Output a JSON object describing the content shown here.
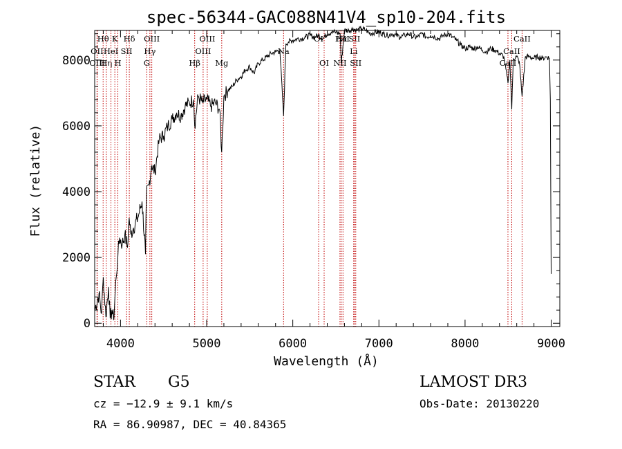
{
  "chart_data": {
    "type": "line",
    "title": "spec-56344-GAC088N41V4_sp10-204.fits",
    "xlabel": "Wavelength (Å)",
    "ylabel": "Flux (relative)",
    "xlim": [
      3700,
      9100
    ],
    "ylim": [
      -100,
      8900
    ],
    "xticks": [
      4000,
      5000,
      6000,
      7000,
      8000,
      9000
    ],
    "yticks": [
      0,
      2000,
      4000,
      6000,
      8000
    ],
    "grid": false,
    "series": [
      {
        "name": "spectrum",
        "x": [
          3700,
          3750,
          3780,
          3800,
          3830,
          3860,
          3880,
          3900,
          3920,
          3935,
          3950,
          3970,
          3990,
          4020,
          4050,
          4080,
          4100,
          4120,
          4150,
          4200,
          4250,
          4290,
          4300,
          4330,
          4360,
          4400,
          4450,
          4500,
          4550,
          4600,
          4650,
          4700,
          4750,
          4800,
          4850,
          4861,
          4900,
          4950,
          5000,
          5050,
          5100,
          5150,
          5175,
          5200,
          5250,
          5300,
          5350,
          5400,
          5450,
          5500,
          5550,
          5600,
          5650,
          5700,
          5750,
          5800,
          5850,
          5893,
          5920,
          5950,
          6000,
          6050,
          6100,
          6150,
          6200,
          6250,
          6300,
          6350,
          6400,
          6450,
          6500,
          6550,
          6563,
          6600,
          6650,
          6700,
          6750,
          6800,
          6850,
          6900,
          6950,
          7000,
          7050,
          7100,
          7150,
          7200,
          7250,
          7300,
          7350,
          7400,
          7450,
          7500,
          7550,
          7600,
          7650,
          7700,
          7750,
          7800,
          7850,
          7900,
          7950,
          8000,
          8050,
          8100,
          8150,
          8200,
          8250,
          8300,
          8350,
          8400,
          8450,
          8498,
          8520,
          8542,
          8560,
          8600,
          8630,
          8662,
          8700,
          8750,
          8800,
          8850,
          8900,
          8950,
          8980,
          8990,
          9000
        ],
        "y": [
          400,
          900,
          300,
          1400,
          200,
          1100,
          150,
          400,
          100,
          800,
          1400,
          2100,
          2600,
          2400,
          2700,
          2300,
          3200,
          2700,
          2900,
          3200,
          3700,
          2100,
          3900,
          4200,
          4800,
          4600,
          5600,
          5700,
          6000,
          6200,
          6400,
          6300,
          6600,
          6700,
          6800,
          6000,
          6900,
          6700,
          6800,
          6600,
          6700,
          6500,
          5200,
          6900,
          7100,
          7200,
          7400,
          7500,
          7700,
          7800,
          7600,
          7900,
          8000,
          8100,
          8200,
          8250,
          8300,
          6300,
          8500,
          8550,
          8600,
          8650,
          8650,
          8700,
          8750,
          8700,
          8750,
          8650,
          8800,
          8850,
          8850,
          8800,
          7900,
          8900,
          8900,
          8950,
          8900,
          8950,
          8900,
          8800,
          8850,
          8850,
          8800,
          8750,
          8800,
          8750,
          8700,
          8750,
          8800,
          8700,
          8700,
          8800,
          8700,
          8750,
          8700,
          8650,
          8750,
          8800,
          8700,
          8600,
          8450,
          8350,
          8400,
          8350,
          8400,
          8300,
          8250,
          8350,
          8300,
          8200,
          8100,
          7300,
          8000,
          6500,
          8050,
          8100,
          7950,
          6900,
          8100,
          8100,
          8050,
          8100,
          8050,
          8100,
          8050,
          6800,
          1500
        ]
      }
    ],
    "lines": [
      {
        "label": "Hθ",
        "x": 3798,
        "row": 1
      },
      {
        "label": "OII",
        "x": 3727,
        "row": 2
      },
      {
        "label": "OIII",
        "x": 3730,
        "row": 3
      },
      {
        "label": "Hη",
        "x": 3835,
        "row": 3
      },
      {
        "label": "HeI",
        "x": 3889,
        "row": 2
      },
      {
        "label": "K",
        "x": 3934,
        "row": 1
      },
      {
        "label": "H",
        "x": 3969,
        "row": 3
      },
      {
        "label": "SII",
        "x": 4070,
        "row": 2
      },
      {
        "label": "Hδ",
        "x": 4102,
        "row": 1
      },
      {
        "label": "OIII",
        "x": 4363,
        "row": 1
      },
      {
        "label": "Hγ",
        "x": 4341,
        "row": 2
      },
      {
        "label": "G",
        "x": 4305,
        "row": 3
      },
      {
        "label": "Hβ",
        "x": 4861,
        "row": 3
      },
      {
        "label": "OIII",
        "x": 4959,
        "row": 2
      },
      {
        "label": "OIII",
        "x": 5007,
        "row": 1
      },
      {
        "label": "Mg",
        "x": 5175,
        "row": 3
      },
      {
        "label": "Na",
        "x": 5893,
        "row": 2
      },
      {
        "label": "OI",
        "x": 6300,
        "row": 1
      },
      {
        "label": "OI",
        "x": 6364,
        "row": 3
      },
      {
        "label": "Hα",
        "x": 6563,
        "row": 1
      },
      {
        "label": "NII",
        "x": 6548,
        "row": 3
      },
      {
        "label": "NII",
        "x": 6583,
        "row": 1
      },
      {
        "label": "Li",
        "x": 6707,
        "row": 2
      },
      {
        "label": "SII",
        "x": 6716,
        "row": 1
      },
      {
        "label": "SII",
        "x": 6731,
        "row": 3
      },
      {
        "label": "CaII",
        "x": 8498,
        "row": 3
      },
      {
        "label": "CaII",
        "x": 8542,
        "row": 2
      },
      {
        "label": "CaII",
        "x": 8662,
        "row": 1
      }
    ],
    "colors": {
      "spectrum": "#000000",
      "line_markers": "#c00000"
    }
  },
  "info": {
    "object_class": "STAR",
    "subclass": "G5",
    "survey": "LAMOST DR3",
    "redshift": "cz = −12.9 ± 9.1 km/s",
    "obs_date": "Obs-Date: 20130220",
    "coords": "RA =  86.90987, DEC =  40.84365"
  }
}
